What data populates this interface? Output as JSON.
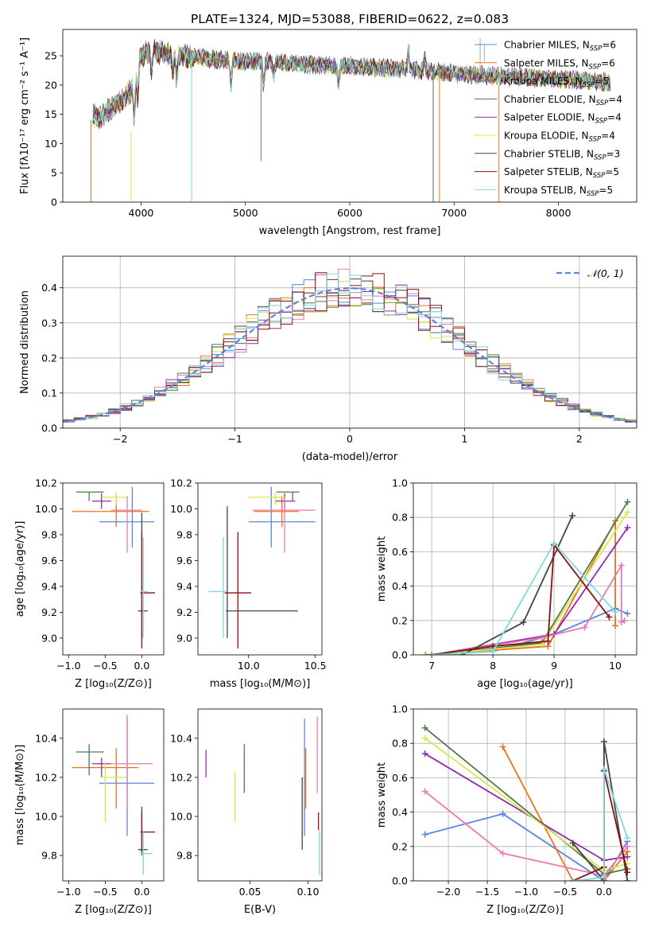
{
  "figure_title": "PLATE=1324, MJD=53088, FIBERID=0622, z=0.083",
  "colors": {
    "Chabrier MILES": "#5b84e0",
    "Salpeter MILES": "#e8741a",
    "Kroupa MILES": "#7a7a7a",
    "Chabrier ELODIE": "#4c7a4c",
    "Salpeter ELODIE": "#8e2bb0",
    "Kroupa ELODIE": "#d8e84a",
    "Chabrier STELIB": "#444444",
    "Salpeter STELIB": "#8b1010",
    "Kroupa STELIB": "#7fd8dc",
    "pink": "#e87ab0"
  },
  "chart_data": [
    {
      "type": "line",
      "title": "",
      "xlabel": "wavelength [Angstrom, rest frame]",
      "ylabel": "Flux [fλ10⁻¹⁷ erg cm⁻² s⁻¹ A⁻¹]",
      "xlim": [
        3250,
        8750
      ],
      "ylim": [
        0,
        29.5
      ],
      "xticks": [
        "4000",
        "5000",
        "6000",
        "7000",
        "8000"
      ],
      "yticks": [
        "0",
        "5",
        "10",
        "15",
        "20",
        "25"
      ],
      "legend_position": "top-right",
      "series": [
        {
          "name": "Chabrier MILES, N_SSP=6"
        },
        {
          "name": "Salpeter MILES, N_SSP=6"
        },
        {
          "name": "Kroupa MILES, N_SSP=5"
        },
        {
          "name": "Chabrier ELODIE, N_SSP=4"
        },
        {
          "name": "Salpeter ELODIE, N_SSP=4"
        },
        {
          "name": "Kroupa ELODIE, N_SSP=4"
        },
        {
          "name": "Chabrier STELIB, N_SSP=3"
        },
        {
          "name": "Salpeter STELIB, N_SSP=5"
        },
        {
          "name": "Kroupa STELIB, N_SSP=5"
        }
      ],
      "continuum": {
        "x": [
          3520,
          3600,
          3700,
          3800,
          3900,
          4000,
          4100,
          4300,
          4500,
          4800,
          5000,
          5200,
          5500,
          5800,
          6000,
          6300,
          6600,
          6800,
          7000,
          7300,
          7600,
          8000,
          8400,
          8500
        ],
        "y": [
          15,
          14.5,
          16,
          17,
          19,
          25,
          26,
          25.2,
          24.8,
          24.2,
          24,
          24,
          23.6,
          23.3,
          23.2,
          23,
          22.6,
          22.3,
          22,
          21.6,
          21.4,
          21,
          20.6,
          20.5
        ]
      }
    },
    {
      "type": "area",
      "title": "",
      "xlabel": "(data-model)/error",
      "ylabel": "Normed distribution",
      "xlim": [
        -2.5,
        2.5
      ],
      "ylim": [
        0,
        0.49
      ],
      "xticks": [
        "−2",
        "−1",
        "0",
        "1",
        "2"
      ],
      "yticks": [
        "0.0",
        "0.1",
        "0.2",
        "0.3",
        "0.4"
      ],
      "grid": true,
      "legend_position": "top-right",
      "legend": "𝒩(0, 1)",
      "bin_width": 0.1
    },
    {
      "type": "scatter",
      "xlabel": "Z [log₁₀(Z/Z⊙)]",
      "ylabel": "age  [log₁₀(age/yr)]",
      "xlim": [
        -1.08,
        0.3
      ],
      "ylim": [
        8.87,
        10.2
      ],
      "xticks": [
        "−1.0",
        "−0.5",
        "0.0"
      ],
      "yticks": [
        "9.0",
        "9.2",
        "9.4",
        "9.6",
        "9.8",
        "10.0",
        "10.2"
      ],
      "points": [
        {
          "c": "#5b84e0",
          "x": -0.13,
          "y": 9.9,
          "xl": -0.58,
          "xh": 0.17,
          "yl": 9.7,
          "yh": 10.17
        },
        {
          "c": "#e8741a",
          "x": -0.35,
          "y": 9.98,
          "xl": -0.95,
          "xh": 0.1,
          "yl": 9.86,
          "yh": 10.1
        },
        {
          "c": "#4c7a4c",
          "x": -0.72,
          "y": 10.13,
          "xl": -0.9,
          "xh": -0.52,
          "yl": 10.06,
          "yh": 10.13
        },
        {
          "c": "#8e2bb0",
          "x": -0.55,
          "y": 10.06,
          "xl": -0.68,
          "xh": -0.42,
          "yl": 10.0,
          "yh": 10.12
        },
        {
          "c": "#d8e84a",
          "x": -0.35,
          "y": 10.09,
          "xl": -0.55,
          "xh": -0.2,
          "yl": 10.03,
          "yh": 10.13
        },
        {
          "c": "#e87ab0",
          "x": -0.2,
          "y": 9.99,
          "xl": -0.42,
          "xh": 0.0,
          "yl": 9.66,
          "yh": 10.1
        },
        {
          "c": "#444444",
          "x": 0.0,
          "y": 9.21,
          "xl": -0.05,
          "xh": 0.08,
          "yl": 9.0,
          "yh": 9.97
        },
        {
          "c": "#8b1010",
          "x": 0.0,
          "y": 9.35,
          "xl": -0.02,
          "xh": 0.18,
          "yl": 8.92,
          "yh": 9.82
        },
        {
          "c": "#7fd8dc",
          "x": 0.02,
          "y": 9.36,
          "xl": -0.02,
          "xh": 0.08,
          "yl": 9.0,
          "yh": 9.78
        }
      ]
    },
    {
      "type": "scatter",
      "xlabel": "mass [log₁₀(M/M⊙)]",
      "ylabel": "",
      "xlim": [
        9.62,
        10.55
      ],
      "ylim": [
        8.87,
        10.2
      ],
      "xticks": [
        "10.0",
        "10.5"
      ],
      "yticks": [
        "9.0",
        "9.2",
        "9.4",
        "9.6",
        "9.8",
        "10.0",
        "10.2"
      ],
      "points": [
        {
          "c": "#5b84e0",
          "x": 10.17,
          "y": 9.9,
          "xl": 10.0,
          "xh": 10.5,
          "yl": 9.7,
          "yh": 10.17
        },
        {
          "c": "#e8741a",
          "x": 10.25,
          "y": 9.98,
          "xl": 10.04,
          "xh": 10.38,
          "yl": 9.86,
          "yh": 10.1
        },
        {
          "c": "#4c7a4c",
          "x": 10.33,
          "y": 10.13,
          "xl": 10.21,
          "xh": 10.38,
          "yl": 10.06,
          "yh": 10.13
        },
        {
          "c": "#8e2bb0",
          "x": 10.27,
          "y": 10.06,
          "xl": 10.2,
          "xh": 10.35,
          "yl": 10.0,
          "yh": 10.12
        },
        {
          "c": "#d8e84a",
          "x": 10.2,
          "y": 10.09,
          "xl": 10.0,
          "xh": 10.28,
          "yl": 10.03,
          "yh": 10.13
        },
        {
          "c": "#e87ab0",
          "x": 10.27,
          "y": 9.99,
          "xl": 10.03,
          "xh": 10.5,
          "yl": 9.66,
          "yh": 10.1
        },
        {
          "c": "#444444",
          "x": 9.84,
          "y": 9.21,
          "xl": 9.83,
          "xh": 10.37,
          "yl": 9.0,
          "yh": 10.02
        },
        {
          "c": "#8b1010",
          "x": 9.92,
          "y": 9.35,
          "xl": 9.82,
          "xh": 10.02,
          "yl": 8.92,
          "yh": 9.82
        },
        {
          "c": "#7fd8dc",
          "x": 9.81,
          "y": 9.36,
          "xl": 9.7,
          "xh": 9.83,
          "yl": 9.0,
          "yh": 9.78
        }
      ]
    },
    {
      "type": "line",
      "xlabel": "age  [log₁₀(age/yr)]",
      "ylabel": "mass weight",
      "xlim": [
        6.7,
        10.35
      ],
      "ylim": [
        0,
        1.0
      ],
      "xticks": [
        "7",
        "8",
        "9",
        "10"
      ],
      "yticks": [
        "0.0",
        "0.2",
        "0.4",
        "0.6",
        "0.8",
        "1.0"
      ],
      "grid": true,
      "series": [
        {
          "c": "#5b84e0",
          "x": [
            7.0,
            8.0,
            9.0,
            10.0,
            10.2
          ],
          "y": [
            0.0,
            0.02,
            0.12,
            0.27,
            0.24
          ]
        },
        {
          "c": "#e8741a",
          "x": [
            6.9,
            8.9,
            10.0,
            10.0
          ],
          "y": [
            0.0,
            0.05,
            0.78,
            0.17
          ]
        },
        {
          "c": "#4c7a4c",
          "x": [
            7.0,
            8.8,
            10.2
          ],
          "y": [
            0.0,
            0.07,
            0.89
          ]
        },
        {
          "c": "#8e2bb0",
          "x": [
            7.0,
            9.0,
            10.2
          ],
          "y": [
            0.0,
            0.12,
            0.74
          ]
        },
        {
          "c": "#d8e84a",
          "x": [
            7.0,
            8.8,
            10.2
          ],
          "y": [
            0.0,
            0.06,
            0.83
          ]
        },
        {
          "c": "#e87ab0",
          "x": [
            7.0,
            8.8,
            9.5,
            10.1,
            10.1,
            10.15
          ],
          "y": [
            0.0,
            0.1,
            0.16,
            0.52,
            0.19,
            0.2
          ]
        },
        {
          "c": "#444444",
          "x": [
            7.5,
            8.5,
            9.3
          ],
          "y": [
            0.0,
            0.19,
            0.81
          ]
        },
        {
          "c": "#8b1010",
          "x": [
            7.0,
            8.0,
            8.9,
            9.0,
            9.9
          ],
          "y": [
            0.0,
            0.05,
            0.08,
            0.64,
            0.22
          ]
        },
        {
          "c": "#7fd8dc",
          "x": [
            7.0,
            8.0,
            9.0,
            10.0
          ],
          "y": [
            0.0,
            0.02,
            0.65,
            0.25
          ]
        }
      ]
    },
    {
      "type": "scatter",
      "xlabel": "Z [log₁₀(Z/Z⊙)]",
      "ylabel": "mass [log₁₀(M/M⊙)]",
      "xlim": [
        -1.08,
        0.3
      ],
      "ylim": [
        9.67,
        10.55
      ],
      "xticks": [
        "−1.0",
        "−0.5",
        "0.0"
      ],
      "yticks": [
        "9.8",
        "10.0",
        "10.2",
        "10.4"
      ],
      "points": [
        {
          "c": "#5b84e0",
          "x": -0.2,
          "y": 10.17,
          "xl": -0.58,
          "xh": 0.17,
          "yl": 9.9,
          "yh": 10.5
        },
        {
          "c": "#e8741a",
          "x": -0.35,
          "y": 10.25,
          "xl": -0.95,
          "xh": -0.05,
          "yl": 10.04,
          "yh": 10.35
        },
        {
          "c": "#4c7a4c",
          "x": -0.72,
          "y": 10.33,
          "xl": -0.9,
          "xh": -0.52,
          "yl": 10.21,
          "yh": 10.37
        },
        {
          "c": "#8e2bb0",
          "x": -0.55,
          "y": 10.27,
          "xl": -0.68,
          "xh": -0.42,
          "yl": 10.2,
          "yh": 10.3
        },
        {
          "c": "#d8e84a",
          "x": -0.5,
          "y": 10.2,
          "xl": -0.55,
          "xh": -0.2,
          "yl": 9.97,
          "yh": 10.28
        },
        {
          "c": "#e87ab0",
          "x": -0.2,
          "y": 10.27,
          "xl": -0.42,
          "xh": 0.15,
          "yl": 10.03,
          "yh": 10.52
        },
        {
          "c": "#444444",
          "x": 0.0,
          "y": 9.83,
          "xl": -0.05,
          "xh": 0.08,
          "yl": 9.8,
          "yh": 10.05
        },
        {
          "c": "#8b1010",
          "x": 0.0,
          "y": 9.92,
          "xl": -0.02,
          "xh": 0.18,
          "yl": 9.82,
          "yh": 10.02
        },
        {
          "c": "#7fd8dc",
          "x": 0.02,
          "y": 9.81,
          "xl": -0.02,
          "xh": 0.15,
          "yl": 9.7,
          "yh": 9.93
        }
      ]
    },
    {
      "type": "scatter",
      "xlabel": "E(B-V)",
      "ylabel": "",
      "xlim": [
        0.005,
        0.112
      ],
      "ylim": [
        9.67,
        10.55
      ],
      "xticks": [
        "0.05",
        "0.10"
      ],
      "yticks": [
        "9.8",
        "10.0",
        "10.2",
        "10.4"
      ],
      "points": [
        {
          "c": "#8e2bb0",
          "x": 0.012,
          "y": 10.27,
          "yl": 10.2,
          "yh": 10.34
        },
        {
          "c": "#d8e84a",
          "x": 0.037,
          "y": 10.09,
          "yl": 9.97,
          "yh": 10.23
        },
        {
          "c": "#4c7a4c",
          "x": 0.045,
          "y": 10.25,
          "yl": 10.12,
          "yh": 10.37
        },
        {
          "c": "#444444",
          "x": 0.095,
          "y": 10.0,
          "yl": 9.83,
          "yh": 10.2
        },
        {
          "c": "#5b84e0",
          "x": 0.097,
          "y": 10.2,
          "yl": 9.9,
          "yh": 10.5
        },
        {
          "c": "#e8741a",
          "x": 0.098,
          "y": 10.18,
          "yl": 10.04,
          "yh": 10.35
        },
        {
          "c": "#e87ab0",
          "x": 0.108,
          "y": 10.3,
          "yl": 10.12,
          "yh": 10.51
        },
        {
          "c": "#8b1010",
          "x": 0.109,
          "y": 9.95,
          "yl": 9.93,
          "yh": 10.02
        },
        {
          "c": "#7fd8dc",
          "x": 0.11,
          "y": 9.81,
          "yl": 9.7,
          "yh": 9.93
        }
      ]
    },
    {
      "type": "line",
      "xlabel": "Z [log₁₀(Z/Z⊙)]",
      "ylabel": "mass weight",
      "xlim": [
        -2.45,
        0.42
      ],
      "ylim": [
        0,
        1.0
      ],
      "xticks": [
        "−2.0",
        "−1.5",
        "−1.0",
        "−0.5",
        "0.0"
      ],
      "yticks": [
        "0.0",
        "0.2",
        "0.4",
        "0.6",
        "0.8",
        "1.0"
      ],
      "grid": true,
      "series": [
        {
          "c": "#5b84e0",
          "x": [
            -2.3,
            -1.3,
            0.0,
            0.3
          ],
          "y": [
            0.27,
            0.39,
            0.0,
            0.23
          ]
        },
        {
          "c": "#e8741a",
          "x": [
            -1.3,
            -0.4,
            0.0,
            0.3
          ],
          "y": [
            0.78,
            0.0,
            0.0,
            0.17
          ]
        },
        {
          "c": "#4c7a4c",
          "x": [
            -2.3,
            0.0,
            0.3
          ],
          "y": [
            0.89,
            0.04,
            0.07
          ]
        },
        {
          "c": "#8e2bb0",
          "x": [
            -2.3,
            0.0,
            0.3
          ],
          "y": [
            0.74,
            0.12,
            0.14
          ]
        },
        {
          "c": "#d8e84a",
          "x": [
            -2.3,
            0.0,
            0.3
          ],
          "y": [
            0.83,
            0.06,
            0.1
          ]
        },
        {
          "c": "#e87ab0",
          "x": [
            -2.3,
            -1.3,
            0.0,
            0.3
          ],
          "y": [
            0.52,
            0.16,
            0.03,
            0.2
          ]
        },
        {
          "c": "#444444",
          "x": [
            -0.4,
            0.0,
            0.0,
            0.3
          ],
          "y": [
            0.22,
            0.0,
            0.81,
            0.0
          ]
        },
        {
          "c": "#8b1010",
          "x": [
            -0.4,
            0.0,
            0.0,
            0.3
          ],
          "y": [
            0.0,
            0.08,
            0.64,
            0.05
          ]
        },
        {
          "c": "#7fd8dc",
          "x": [
            -0.4,
            0.0,
            0.0,
            0.3
          ],
          "y": [
            0.0,
            0.02,
            0.65,
            0.25
          ]
        }
      ]
    }
  ]
}
